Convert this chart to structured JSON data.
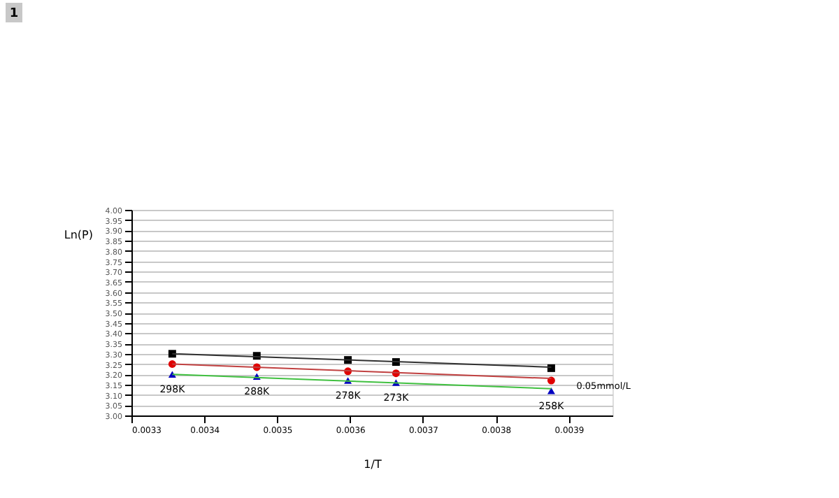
{
  "chart_data": {
    "type": "scatter",
    "xlabel": "1/T",
    "ylabel": "Ln(P)",
    "xlim": [
      0.0033,
      0.00396
    ],
    "xticks": [
      0.0033,
      0.0034,
      0.0035,
      0.0036,
      0.0037,
      0.0038,
      0.0039
    ],
    "ylim": [
      3.0,
      4.0
    ],
    "yticks": [
      {
        "value": 3.0,
        "label": "3.00"
      },
      3.05,
      {
        "value": 3.1,
        "label": "3.10"
      },
      3.15,
      {
        "value": 3.2,
        "label": "3.20"
      },
      3.25,
      {
        "value": 3.3,
        "label": "3.30"
      },
      3.35,
      {
        "value": 3.4,
        "label": "3.40"
      },
      3.45,
      {
        "value": 3.5,
        "label": "3.50"
      },
      3.55,
      {
        "value": 3.6,
        "label": "3.60"
      },
      3.65,
      {
        "value": 3.7,
        "label": "3.70"
      },
      3.75,
      {
        "value": 3.8,
        "label": "3.80"
      },
      3.85,
      {
        "value": 3.9,
        "label": "3.90"
      },
      3.95,
      {
        "value": 4.0,
        "label": "4.00"
      }
    ],
    "grid": "y",
    "series": [
      {
        "type": "scatter",
        "marker": "square",
        "color": "#000000",
        "x": [
          0.003356,
          0.003472,
          0.003597,
          0.003663,
          0.003876
        ],
        "values": [
          3.3,
          3.29,
          3.27,
          3.26,
          3.23
        ]
      },
      {
        "type": "scatter",
        "marker": "circle",
        "color": "#e00000",
        "x": [
          0.003356,
          0.003472,
          0.003597,
          0.003663,
          0.003876
        ],
        "values": [
          3.25,
          3.235,
          3.215,
          3.205,
          3.17
        ]
      },
      {
        "type": "scatter",
        "marker": "triangle",
        "color": "#0000c0",
        "x": [
          0.003356,
          0.003472,
          0.003597,
          0.003663,
          0.003876
        ],
        "values": [
          3.2,
          3.19,
          3.17,
          3.16,
          3.12
        ]
      },
      {
        "type": "line",
        "marker": "none",
        "color": "#303030",
        "x": [
          0.003356,
          0.003876
        ],
        "values": [
          3.3,
          3.235
        ]
      },
      {
        "type": "line",
        "marker": "none",
        "color": "#c04040",
        "x": [
          0.003356,
          0.003876
        ],
        "values": [
          3.25,
          3.18
        ]
      },
      {
        "type": "line",
        "marker": "none",
        "color": "#40c040",
        "x": [
          0.003356,
          0.003876
        ],
        "values": [
          3.2,
          3.13
        ]
      }
    ],
    "annotations": [
      "1",
      {
        "text": "298K",
        "x": 0.003356,
        "y": 3.2
      },
      {
        "text": "288K",
        "x": 0.003472,
        "y": 3.19
      },
      {
        "text": "278K",
        "x": 0.003597,
        "y": 3.17
      },
      {
        "text": "273K",
        "x": 0.003663,
        "y": 3.16
      },
      {
        "text": "258K",
        "x": 0.003876,
        "y": 3.12
      },
      {
        "text": "0.05mmol/L",
        "x": 0.003876,
        "y": 3.135
      }
    ]
  }
}
